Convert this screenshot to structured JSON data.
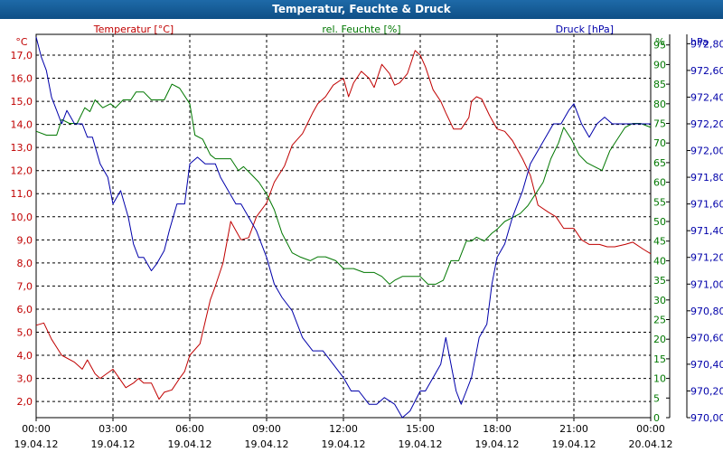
{
  "window": {
    "title": "Temperatur, Feuchte & Druck"
  },
  "chart_data": {
    "type": "line",
    "title": "Temperatur, Feuchte & Druck",
    "x_ticks": [
      {
        "h": 0,
        "time": "00:00",
        "date": "19.04.12"
      },
      {
        "h": 3,
        "time": "03:00",
        "date": "19.04.12"
      },
      {
        "h": 6,
        "time": "06:00",
        "date": "19.04.12"
      },
      {
        "h": 9,
        "time": "09:00",
        "date": "19.04.12"
      },
      {
        "h": 12,
        "time": "12:00",
        "date": "19.04.12"
      },
      {
        "h": 15,
        "time": "15:00",
        "date": "19.04.12"
      },
      {
        "h": 18,
        "time": "18:00",
        "date": "19.04.12"
      },
      {
        "h": 21,
        "time": "21:00",
        "date": "19.04.12"
      },
      {
        "h": 24,
        "time": "00:00",
        "date": "20.04.12"
      }
    ],
    "xlim": [
      0,
      24
    ],
    "axes": {
      "temperature": {
        "label": "Temperatur [°C]",
        "unit": "°C",
        "ylim": [
          1.3,
          17.9
        ],
        "color": "#c00000",
        "ticks": [
          "2,0",
          "3,0",
          "4,0",
          "5,0",
          "6,0",
          "7,0",
          "8,0",
          "9,0",
          "10,0",
          "11,0",
          "12,0",
          "13,0",
          "14,0",
          "15,0",
          "16,0",
          "17,0"
        ]
      },
      "humidity": {
        "label": "rel. Feuchte [%]",
        "unit": "%",
        "ylim": [
          0,
          97.7
        ],
        "color": "#007700",
        "ticks": [
          "0",
          "5",
          "10",
          "15",
          "20",
          "25",
          "30",
          "35",
          "40",
          "45",
          "50",
          "55",
          "60",
          "65",
          "70",
          "75",
          "80",
          "85",
          "90",
          "95"
        ]
      },
      "pressure": {
        "label": "Druck [hPa]",
        "unit": "hPa",
        "ylim": [
          970.0,
          972.87
        ],
        "color": "#0000aa",
        "ticks": [
          "970,00",
          "970,20",
          "970,40",
          "970,60",
          "970,80",
          "971,00",
          "971,20",
          "971,40",
          "971,60",
          "971,80",
          "972,00",
          "972,20",
          "972,40",
          "972,60",
          "972,80"
        ]
      }
    },
    "series": [
      {
        "name": "Temperatur",
        "axis": "temperature",
        "x": [
          0,
          0.3,
          0.6,
          1,
          1.5,
          1.8,
          2,
          2.3,
          2.5,
          3,
          3.5,
          3.8,
          4,
          4.2,
          4.5,
          4.8,
          5,
          5.3,
          5.6,
          5.8,
          6,
          6.4,
          6.8,
          7,
          7.3,
          7.6,
          8,
          8.3,
          8.6,
          9,
          9.3,
          9.7,
          10,
          10.4,
          10.8,
          11,
          11.3,
          11.6,
          12,
          12.2,
          12.4,
          12.7,
          13,
          13.2,
          13.5,
          13.8,
          14,
          14.2,
          14.5,
          14.8,
          15,
          15.2,
          15.5,
          15.8,
          16,
          16.3,
          16.6,
          16.9,
          17,
          17.2,
          17.4,
          17.7,
          18,
          18.3,
          18.6,
          19,
          19.3,
          19.6,
          20,
          20.3,
          20.6,
          21,
          21.3,
          21.6,
          22,
          22.3,
          22.6,
          23,
          23.3,
          23.7,
          24
        ],
        "values": [
          5.3,
          5.4,
          4.7,
          4.0,
          3.7,
          3.4,
          3.8,
          3.2,
          3.0,
          3.4,
          2.6,
          2.8,
          3.0,
          2.8,
          2.8,
          2.1,
          2.4,
          2.5,
          3.0,
          3.3,
          4.0,
          4.5,
          6.4,
          7.0,
          8.0,
          9.8,
          9.0,
          9.1,
          10.0,
          10.6,
          11.5,
          12.2,
          13.1,
          13.6,
          14.5,
          14.9,
          15.2,
          15.7,
          16.0,
          15.2,
          15.8,
          16.3,
          16.0,
          15.6,
          16.6,
          16.2,
          15.7,
          15.8,
          16.2,
          17.2,
          17.0,
          16.5,
          15.5,
          15.0,
          14.5,
          13.8,
          13.8,
          14.3,
          15.0,
          15.2,
          15.1,
          14.4,
          13.8,
          13.7,
          13.3,
          12.5,
          11.8,
          10.5,
          10.2,
          10.0,
          9.5,
          9.5,
          9.0,
          8.8,
          8.8,
          8.7,
          8.7,
          8.8,
          8.9,
          8.6,
          8.4
        ]
      },
      {
        "name": "rel. Feuchte",
        "axis": "humidity",
        "x": [
          0,
          0.4,
          0.8,
          1,
          1.3,
          1.6,
          1.9,
          2.1,
          2.3,
          2.6,
          2.9,
          3.1,
          3.4,
          3.7,
          3.9,
          4.2,
          4.5,
          4.7,
          5,
          5.3,
          5.6,
          6,
          6.2,
          6.5,
          6.8,
          7,
          7.3,
          7.6,
          7.9,
          8.1,
          8.4,
          8.7,
          9,
          9.3,
          9.6,
          10,
          10.3,
          10.7,
          11,
          11.3,
          11.7,
          12,
          12.4,
          12.8,
          13.2,
          13.5,
          13.8,
          14,
          14.3,
          14.6,
          15,
          15.3,
          15.6,
          15.9,
          16.2,
          16.5,
          16.8,
          17,
          17.2,
          17.5,
          17.8,
          18,
          18.3,
          18.6,
          18.9,
          19.2,
          19.5,
          19.8,
          20.1,
          20.4,
          20.6,
          20.9,
          21.2,
          21.5,
          21.8,
          22.1,
          22.4,
          22.7,
          23,
          23.3,
          23.6,
          24
        ],
        "values": [
          73,
          72,
          72,
          76,
          75,
          75,
          79,
          78,
          81,
          79,
          80,
          79,
          81,
          81,
          83,
          83,
          81,
          81,
          81,
          85,
          84,
          80,
          72,
          71,
          67,
          66,
          66,
          66,
          63,
          64,
          62,
          60,
          57,
          53,
          47,
          42,
          41,
          40,
          41,
          41,
          40,
          38,
          38,
          37,
          37,
          36,
          34,
          35,
          36,
          36,
          36,
          34,
          34,
          35,
          40,
          40,
          45,
          45,
          46,
          45,
          47,
          48,
          50,
          51,
          52,
          54,
          57,
          60,
          66,
          70,
          74,
          71,
          67,
          65,
          64,
          63,
          68,
          71,
          74,
          75,
          75,
          74
        ]
      },
      {
        "name": "Druck",
        "axis": "pressure",
        "x": [
          0,
          0.2,
          0.4,
          0.6,
          0.8,
          1,
          1.2,
          1.5,
          1.8,
          2,
          2.2,
          2.5,
          2.8,
          3,
          3.3,
          3.6,
          3.8,
          4,
          4.2,
          4.5,
          4.7,
          5,
          5.2,
          5.5,
          5.8,
          6,
          6.3,
          6.6,
          7,
          7.2,
          7.5,
          7.8,
          8,
          8.3,
          8.6,
          9,
          9.3,
          9.6,
          10,
          10.4,
          10.8,
          11.2,
          11.6,
          12,
          12.3,
          12.6,
          13,
          13.3,
          13.6,
          14,
          14.3,
          14.6,
          15,
          15.2,
          15.5,
          15.8,
          16,
          16.2,
          16.4,
          16.6,
          16.8,
          17,
          17.3,
          17.6,
          17.8,
          18,
          18.3,
          18.6,
          19,
          19.3,
          19.6,
          19.9,
          20.2,
          20.5,
          20.8,
          21,
          21.3,
          21.6,
          21.9,
          22.2,
          22.5,
          22.8,
          23,
          23.2,
          23.4,
          23.6,
          24
        ],
        "values": [
          972.85,
          972.7,
          972.6,
          972.4,
          972.3,
          972.2,
          972.3,
          972.2,
          972.2,
          972.1,
          972.1,
          971.9,
          971.8,
          971.6,
          971.7,
          971.5,
          971.3,
          971.2,
          971.2,
          971.1,
          971.15,
          971.25,
          971.4,
          971.6,
          971.6,
          971.9,
          971.95,
          971.9,
          971.9,
          971.8,
          971.7,
          971.6,
          971.6,
          971.5,
          971.4,
          971.2,
          971.0,
          970.9,
          970.8,
          970.6,
          970.5,
          970.5,
          970.4,
          970.3,
          970.2,
          970.2,
          970.1,
          970.1,
          970.15,
          970.1,
          970.0,
          970.05,
          970.2,
          970.2,
          970.3,
          970.4,
          970.6,
          970.4,
          970.2,
          970.1,
          970.2,
          970.3,
          970.6,
          970.7,
          971.0,
          971.2,
          971.3,
          971.5,
          971.7,
          971.9,
          972.0,
          972.1,
          972.2,
          972.2,
          972.3,
          972.35,
          972.2,
          972.1,
          972.2,
          972.25,
          972.2,
          972.2,
          972.2,
          972.2,
          972.2,
          972.2,
          972.2
        ]
      }
    ]
  }
}
